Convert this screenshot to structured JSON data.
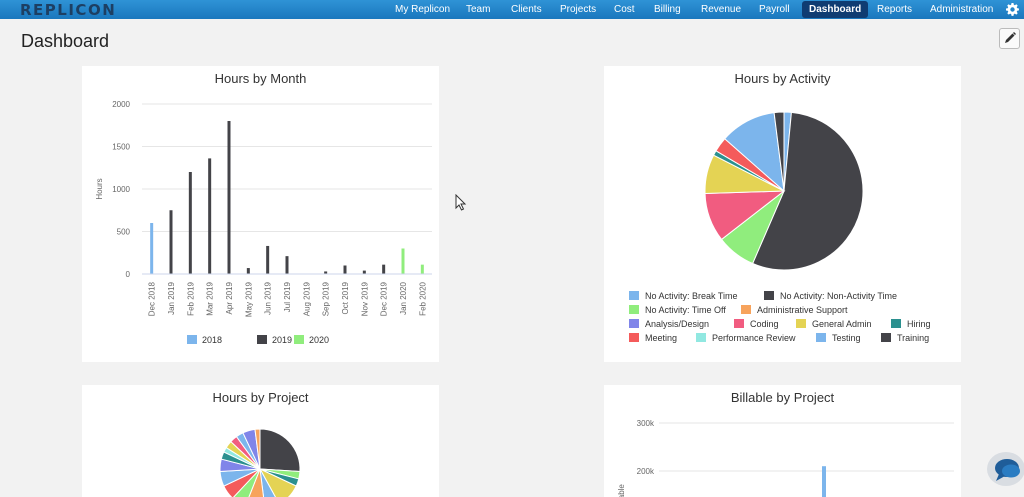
{
  "app": {
    "brand": "REPLICON"
  },
  "nav": [
    {
      "label": "My Replicon",
      "active": false
    },
    {
      "label": "Team",
      "active": false
    },
    {
      "label": "Clients",
      "active": false
    },
    {
      "label": "Projects",
      "active": false
    },
    {
      "label": "Cost",
      "active": false
    },
    {
      "label": "Billing",
      "active": false
    },
    {
      "label": "Revenue",
      "active": false
    },
    {
      "label": "Payroll",
      "active": false
    },
    {
      "label": "Dashboard",
      "active": true
    },
    {
      "label": "Reports",
      "active": false
    },
    {
      "label": "Administration",
      "active": false
    }
  ],
  "page": {
    "title": "Dashboard"
  },
  "colors": {
    "nav_bg": "#2288cc",
    "active_tab": "#0f3c72",
    "brand": "#1d3f63"
  },
  "icons": {
    "settings": "gear-icon",
    "edit": "pencil-icon",
    "chat": "chat-icon"
  },
  "chart_data": [
    {
      "type": "bar",
      "title": "Hours by Month",
      "xlabel": "",
      "ylabel": "Hours",
      "ylim": [
        0,
        2000
      ],
      "yticks": [
        "0",
        "500",
        "1000",
        "1500",
        "2000"
      ],
      "categories": [
        "Dec 2018",
        "Jan 2019",
        "Feb 2019",
        "Mar 2019",
        "Apr 2019",
        "May 2019",
        "Jun 2019",
        "Jul 2019",
        "Aug 2019",
        "Sep 2019",
        "Oct 2019",
        "Nov 2019",
        "Dec 2019",
        "Jan 2020",
        "Feb 2020"
      ],
      "series": [
        {
          "name": "2018",
          "color": "#7cb5ec",
          "values": [
            600,
            0,
            0,
            0,
            0,
            0,
            0,
            0,
            0,
            0,
            0,
            0,
            0,
            0,
            0
          ]
        },
        {
          "name": "2019",
          "color": "#434348",
          "values": [
            0,
            750,
            1200,
            1360,
            1800,
            70,
            330,
            210,
            0,
            30,
            100,
            40,
            110,
            0,
            0
          ]
        },
        {
          "name": "2020",
          "color": "#90ed7d",
          "values": [
            0,
            0,
            0,
            0,
            0,
            0,
            0,
            0,
            0,
            0,
            0,
            0,
            0,
            300,
            110
          ]
        }
      ],
      "legend": "bottom",
      "grid": true
    },
    {
      "type": "pie",
      "title": "Hours by Activity",
      "legend": "bottom",
      "slices": [
        {
          "name": "No Activity: Break Time",
          "color": "#7cb5ec",
          "value": 1.5
        },
        {
          "name": "No Activity: Non-Activity Time",
          "color": "#434348",
          "value": 55
        },
        {
          "name": "No Activity: Time Off",
          "color": "#90ed7d",
          "value": 8
        },
        {
          "name": "Administrative Support",
          "color": "#f7a35c",
          "value": 0
        },
        {
          "name": "Analysis/Design",
          "color": "#8085e9",
          "value": 0
        },
        {
          "name": "Coding",
          "color": "#f15c80",
          "value": 10
        },
        {
          "name": "General Admin",
          "color": "#e4d354",
          "value": 8
        },
        {
          "name": "Hiring",
          "color": "#2b908f",
          "value": 1
        },
        {
          "name": "Meeting",
          "color": "#f45b5b",
          "value": 3
        },
        {
          "name": "Performance Review",
          "color": "#91e8e1",
          "value": 0
        },
        {
          "name": "Testing",
          "color": "#7cb5ec",
          "value": 11.5
        },
        {
          "name": "Training",
          "color": "#434348",
          "value": 2
        }
      ]
    },
    {
      "type": "pie",
      "title": "Hours by Project",
      "slices": [
        {
          "color": "#434348",
          "value": 26
        },
        {
          "color": "#90ed7d",
          "value": 3
        },
        {
          "color": "#2b908f",
          "value": 3
        },
        {
          "color": "#e4d354",
          "value": 10
        },
        {
          "color": "#7cb5ec",
          "value": 6
        },
        {
          "color": "#f7a35c",
          "value": 8
        },
        {
          "color": "#90ed7d",
          "value": 6
        },
        {
          "color": "#f45b5b",
          "value": 6
        },
        {
          "color": "#7cb5ec",
          "value": 6
        },
        {
          "color": "#8085e9",
          "value": 5
        },
        {
          "color": "#2b908f",
          "value": 3
        },
        {
          "color": "#91e8e1",
          "value": 2
        },
        {
          "color": "#e4d354",
          "value": 3
        },
        {
          "color": "#f15c80",
          "value": 3
        },
        {
          "color": "#7cb5ec",
          "value": 3
        },
        {
          "color": "#8085e9",
          "value": 5
        },
        {
          "color": "#f7a35c",
          "value": 2
        }
      ]
    },
    {
      "type": "bar",
      "title": "Billable by Project",
      "ylabel": "Billable",
      "yticks": [
        "200k",
        "300k"
      ],
      "ylim": [
        0,
        300000
      ],
      "categories": [
        ""
      ],
      "values": [
        210000
      ]
    }
  ]
}
